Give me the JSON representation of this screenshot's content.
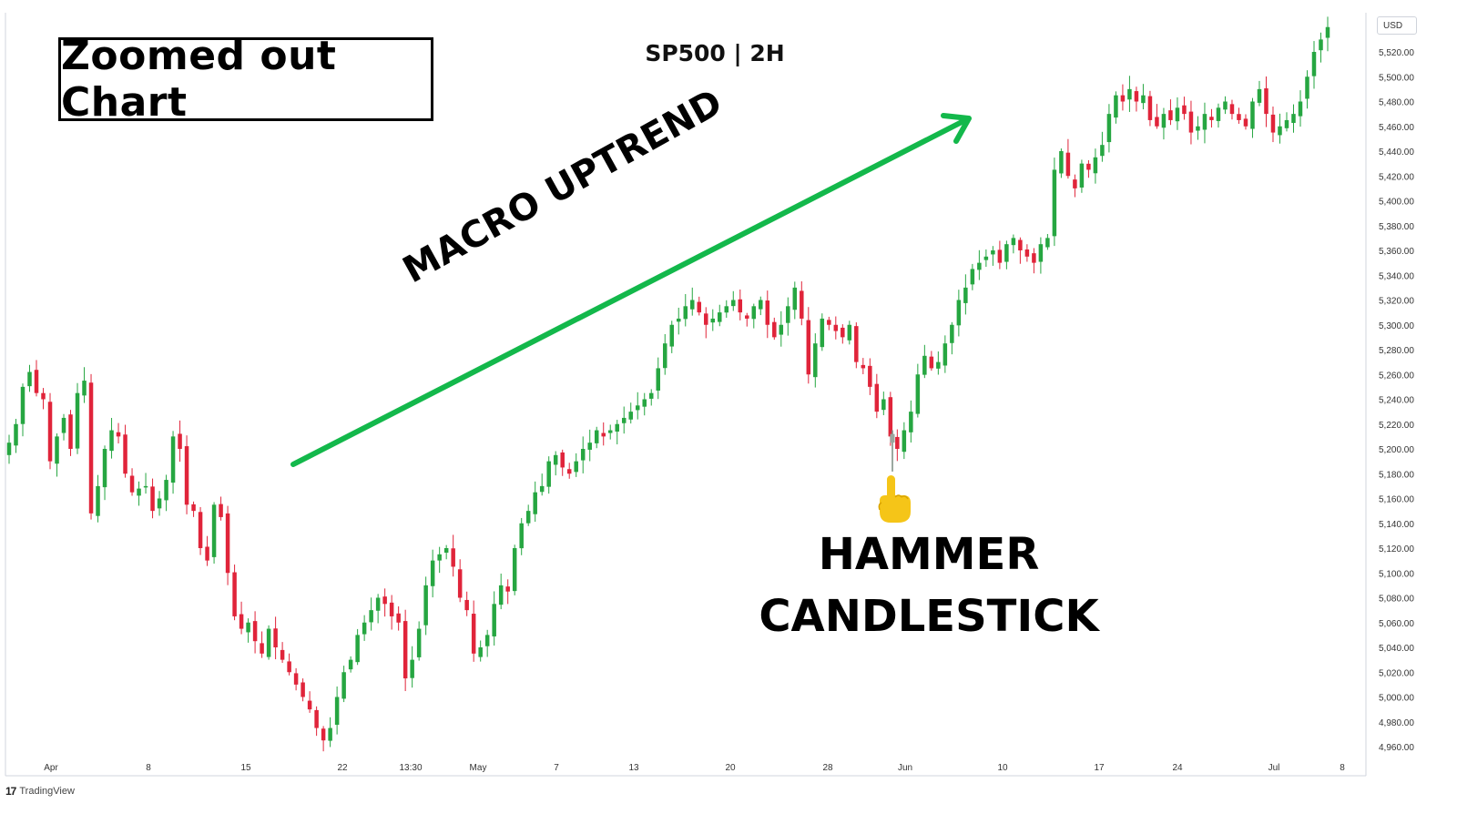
{
  "title": "SP500 | 2H",
  "zoom_label": "Zoomed out Chart",
  "trend_label": "MACRO UPTREND",
  "hammer_label_line1": "HAMMER",
  "hammer_label_line2": "CANDLESTICK",
  "currency": "USD",
  "branding": "TradingView",
  "colors": {
    "up": "#26a641",
    "down": "#e0243a",
    "arrow": "#13b84b"
  },
  "icons": {
    "pointer": "pointing-hand-icon",
    "logo": "tradingview-logo-icon"
  },
  "chart_data": {
    "type": "candlestick",
    "symbol": "SP500",
    "interval": "2H",
    "ylim": [
      4950,
      5530
    ],
    "y_ticks": [
      4960,
      4980,
      5000,
      5020,
      5040,
      5060,
      5080,
      5100,
      5120,
      5140,
      5160,
      5180,
      5200,
      5220,
      5240,
      5260,
      5280,
      5300,
      5320,
      5340,
      5360,
      5380,
      5400,
      5420,
      5440,
      5460,
      5480,
      5500,
      5520
    ],
    "x_tick_labels": [
      "Apr",
      "8",
      "15",
      "22",
      "13:30",
      "May",
      "7",
      "13",
      "20",
      "28",
      "Jun",
      "10",
      "17",
      "24",
      "Jul",
      "8"
    ],
    "close_path": [
      5205,
      5220,
      5250,
      5262,
      5245,
      5240,
      5190,
      5210,
      5225,
      5200,
      5245,
      5255,
      5148,
      5170,
      5200,
      5215,
      5210,
      5180,
      5165,
      5168,
      5170,
      5150,
      5160,
      5175,
      5210,
      5200,
      5155,
      5150,
      5120,
      5110,
      5155,
      5145,
      5100,
      5065,
      5055,
      5060,
      5045,
      5035,
      5055,
      5040,
      5030,
      5020,
      5010,
      5000,
      4990,
      4975,
      4965,
      4975,
      5000,
      5020,
      5030,
      5050,
      5060,
      5070,
      5080,
      5075,
      5065,
      5060,
      5015,
      5030,
      5055,
      5090,
      5110,
      5115,
      5120,
      5105,
      5080,
      5070,
      5035,
      5040,
      5050,
      5075,
      5090,
      5085,
      5120,
      5140,
      5150,
      5165,
      5170,
      5190,
      5195,
      5185,
      5180,
      5190,
      5200,
      5205,
      5215,
      5210,
      5215,
      5220,
      5225,
      5230,
      5235,
      5240,
      5245,
      5265,
      5285,
      5300,
      5305,
      5315,
      5320,
      5310,
      5300,
      5305,
      5310,
      5315,
      5320,
      5310,
      5305,
      5315,
      5320,
      5300,
      5290,
      5300,
      5315,
      5330,
      5305,
      5260,
      5285,
      5305,
      5300,
      5295,
      5290,
      5300,
      5270,
      5265,
      5250,
      5230,
      5240,
      5210,
      5200,
      5215,
      5230,
      5260,
      5275,
      5265,
      5270,
      5285,
      5300,
      5320,
      5330,
      5345,
      5350,
      5355,
      5360,
      5350,
      5365,
      5370,
      5360,
      5355,
      5350,
      5365,
      5370,
      5425,
      5440,
      5420,
      5410,
      5430,
      5425,
      5435,
      5445,
      5470,
      5485,
      5480,
      5490,
      5480,
      5485,
      5465,
      5460,
      5470,
      5465,
      5475,
      5470,
      5455,
      5460,
      5470,
      5465,
      5475,
      5480,
      5470,
      5465,
      5460,
      5480,
      5490,
      5470,
      5455,
      5460,
      5465,
      5470,
      5480,
      5500,
      5520,
      5530,
      5540
    ],
    "hammer_candle": {
      "date": "2024-05-31",
      "open": 5205,
      "high": 5215,
      "low": 5192,
      "close": 5212
    }
  }
}
